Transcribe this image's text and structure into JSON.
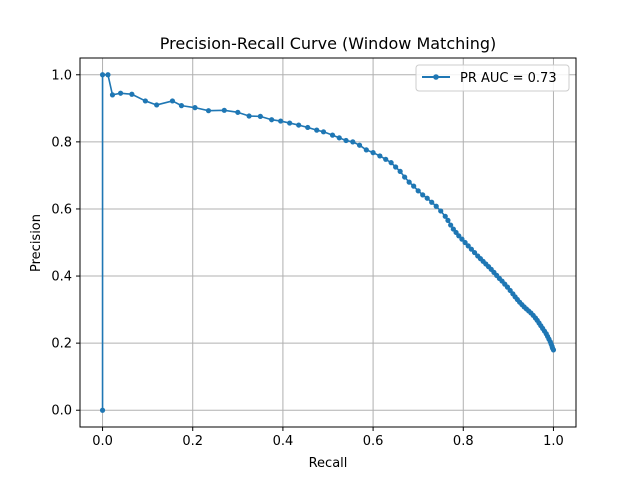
{
  "chart_data": {
    "type": "line",
    "title": "Precision-Recall Curve (Window Matching)",
    "xlabel": "Recall",
    "ylabel": "Precision",
    "xlim": [
      -0.05,
      1.05
    ],
    "ylim": [
      -0.05,
      1.05
    ],
    "x_ticks": [
      0.0,
      0.2,
      0.4,
      0.6,
      0.8,
      1.0
    ],
    "y_ticks": [
      0.0,
      0.2,
      0.4,
      0.6,
      0.8,
      1.0
    ],
    "x_tick_labels": [
      "0.0",
      "0.2",
      "0.4",
      "0.6",
      "0.8",
      "1.0"
    ],
    "y_tick_labels": [
      "0.0",
      "0.2",
      "0.4",
      "0.6",
      "0.8",
      "1.0"
    ],
    "grid": true,
    "legend_position": "top-right",
    "color": "#1f77b4",
    "series": [
      {
        "name": "PR AUC = 0.73",
        "marker": "circle",
        "x": [
          0.0,
          0.0,
          0.012,
          0.022,
          0.04,
          0.065,
          0.095,
          0.12,
          0.155,
          0.175,
          0.205,
          0.235,
          0.27,
          0.3,
          0.325,
          0.35,
          0.375,
          0.395,
          0.415,
          0.435,
          0.455,
          0.475,
          0.49,
          0.51,
          0.525,
          0.54,
          0.555,
          0.57,
          0.585,
          0.6,
          0.615,
          0.628,
          0.64,
          0.65,
          0.66,
          0.67,
          0.68,
          0.69,
          0.7,
          0.71,
          0.72,
          0.73,
          0.74,
          0.75,
          0.76,
          0.766,
          0.772,
          0.778,
          0.784,
          0.79,
          0.797,
          0.804,
          0.811,
          0.818,
          0.825,
          0.832,
          0.838,
          0.844,
          0.85,
          0.856,
          0.862,
          0.868,
          0.874,
          0.88,
          0.886,
          0.892,
          0.898,
          0.904,
          0.91,
          0.915,
          0.92,
          0.925,
          0.93,
          0.935,
          0.94,
          0.945,
          0.95,
          0.955,
          0.96,
          0.964,
          0.968,
          0.972,
          0.976,
          0.98,
          0.984,
          0.987,
          0.99,
          0.993,
          0.995,
          0.997,
          0.998,
          1.0
        ],
        "y": [
          0.0,
          1.0,
          1.0,
          0.94,
          0.945,
          0.942,
          0.922,
          0.91,
          0.922,
          0.908,
          0.902,
          0.893,
          0.894,
          0.888,
          0.877,
          0.876,
          0.866,
          0.862,
          0.856,
          0.85,
          0.843,
          0.835,
          0.83,
          0.82,
          0.812,
          0.804,
          0.8,
          0.79,
          0.776,
          0.768,
          0.758,
          0.748,
          0.738,
          0.725,
          0.712,
          0.695,
          0.68,
          0.668,
          0.654,
          0.642,
          0.632,
          0.62,
          0.608,
          0.594,
          0.578,
          0.566,
          0.552,
          0.54,
          0.53,
          0.52,
          0.51,
          0.5,
          0.49,
          0.48,
          0.47,
          0.46,
          0.452,
          0.444,
          0.436,
          0.428,
          0.42,
          0.411,
          0.402,
          0.393,
          0.385,
          0.376,
          0.367,
          0.357,
          0.347,
          0.338,
          0.33,
          0.322,
          0.315,
          0.308,
          0.302,
          0.296,
          0.29,
          0.283,
          0.275,
          0.268,
          0.26,
          0.252,
          0.244,
          0.236,
          0.228,
          0.22,
          0.212,
          0.204,
          0.197,
          0.19,
          0.185,
          0.18
        ]
      }
    ]
  }
}
